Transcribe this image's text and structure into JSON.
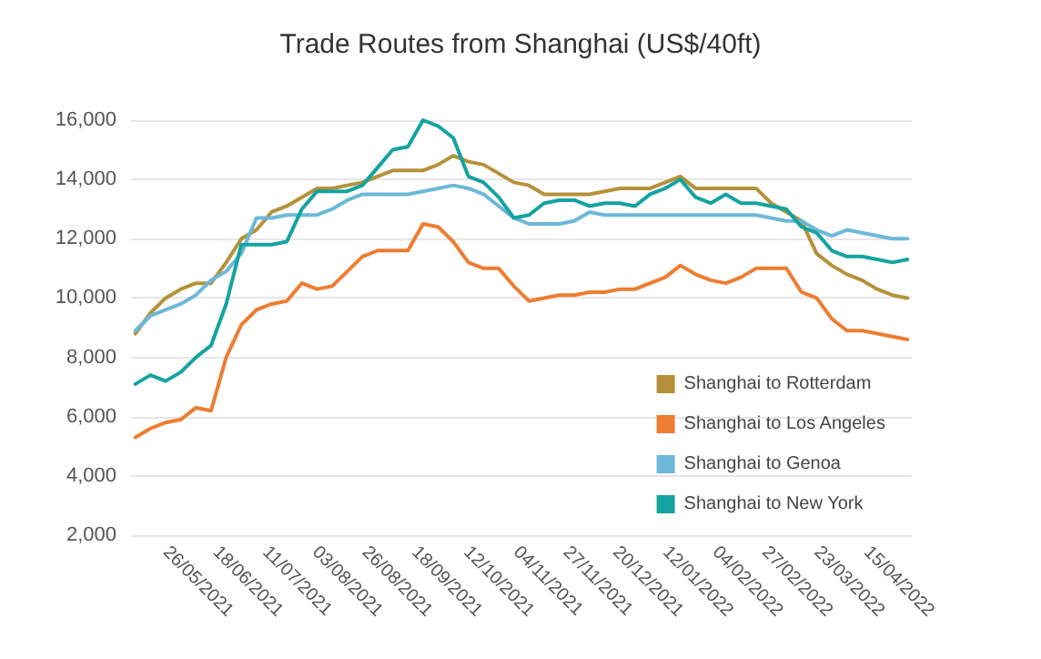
{
  "chart_data": {
    "type": "line",
    "title": "Trade Routes from Shanghai (US$/40ft)",
    "x": [
      "2021-05-12",
      "2021-05-19",
      "2021-05-26",
      "2021-06-02",
      "2021-06-09",
      "2021-06-16",
      "2021-06-23",
      "2021-06-30",
      "2021-07-07",
      "2021-07-14",
      "2021-07-21",
      "2021-07-28",
      "2021-08-04",
      "2021-08-11",
      "2021-08-18",
      "2021-08-25",
      "2021-09-01",
      "2021-09-08",
      "2021-09-15",
      "2021-09-22",
      "2021-09-29",
      "2021-10-06",
      "2021-10-13",
      "2021-10-20",
      "2021-10-27",
      "2021-11-03",
      "2021-11-10",
      "2021-11-17",
      "2021-11-24",
      "2021-12-01",
      "2021-12-08",
      "2021-12-15",
      "2021-12-22",
      "2021-12-29",
      "2022-01-05",
      "2022-01-12",
      "2022-01-19",
      "2022-01-26",
      "2022-02-02",
      "2022-02-09",
      "2022-02-16",
      "2022-02-23",
      "2022-03-02",
      "2022-03-09",
      "2022-03-16",
      "2022-03-23",
      "2022-03-30",
      "2022-04-06",
      "2022-04-13",
      "2022-04-20",
      "2022-04-27",
      "2022-05-04"
    ],
    "series": [
      {
        "name": "Shanghai to Rotterdam",
        "color": "#b5913a",
        "values": [
          8800,
          9500,
          10000,
          10300,
          10500,
          10500,
          11200,
          12000,
          12300,
          12900,
          13100,
          13400,
          13700,
          13700,
          13800,
          13900,
          14100,
          14300,
          14300,
          14300,
          14500,
          14800,
          14600,
          14500,
          14200,
          13900,
          13800,
          13500,
          13500,
          13500,
          13500,
          13600,
          13700,
          13700,
          13700,
          13900,
          14100,
          13700,
          13700,
          13700,
          13700,
          13700,
          13200,
          12900,
          12600,
          11500,
          11100,
          10800,
          10600,
          10300,
          10100,
          10000
        ]
      },
      {
        "name": "Shanghai to Los Angeles",
        "color": "#ed7d31",
        "values": [
          5300,
          5600,
          5800,
          5900,
          6300,
          6200,
          8000,
          9100,
          9600,
          9800,
          9900,
          10500,
          10300,
          10400,
          10900,
          11400,
          11600,
          11600,
          11600,
          12500,
          12400,
          11900,
          11200,
          11000,
          11000,
          10400,
          9900,
          10000,
          10100,
          10100,
          10200,
          10200,
          10300,
          10300,
          10500,
          10700,
          11100,
          10800,
          10600,
          10500,
          10700,
          11000,
          11000,
          11000,
          10200,
          10000,
          9300,
          8900,
          8900,
          8800,
          8700,
          8600
        ]
      },
      {
        "name": "Shanghai to Genoa",
        "color": "#6cb8d8",
        "values": [
          8900,
          9400,
          9600,
          9800,
          10100,
          10600,
          10900,
          11500,
          12700,
          12700,
          12800,
          12800,
          12800,
          13000,
          13300,
          13500,
          13500,
          13500,
          13500,
          13600,
          13700,
          13800,
          13700,
          13500,
          13100,
          12700,
          12500,
          12500,
          12500,
          12600,
          12900,
          12800,
          12800,
          12800,
          12800,
          12800,
          12800,
          12800,
          12800,
          12800,
          12800,
          12800,
          12700,
          12600,
          12600,
          12300,
          12100,
          12300,
          12200,
          12100,
          12000,
          12000
        ]
      },
      {
        "name": "Shanghai to New York",
        "color": "#14a3a0",
        "values": [
          7100,
          7400,
          7200,
          7500,
          8000,
          8400,
          9800,
          11800,
          11800,
          11800,
          11900,
          13000,
          13600,
          13600,
          13600,
          13800,
          14400,
          15000,
          15100,
          16000,
          15800,
          15400,
          14100,
          13900,
          13400,
          12700,
          12800,
          13200,
          13300,
          13300,
          13100,
          13200,
          13200,
          13100,
          13500,
          13700,
          14000,
          13400,
          13200,
          13500,
          13200,
          13200,
          13100,
          13000,
          12400,
          12200,
          11600,
          11400,
          11400,
          11300,
          11200,
          11300
        ]
      }
    ],
    "xlim": [
      "2021-05-10",
      "2022-05-06"
    ],
    "xticks": [
      {
        "value": "2021-05-26",
        "label": "26/05/2021"
      },
      {
        "value": "2021-06-18",
        "label": "18/06/2021"
      },
      {
        "value": "2021-07-11",
        "label": "11/07/2021"
      },
      {
        "value": "2021-08-03",
        "label": "03/08/2021"
      },
      {
        "value": "2021-08-26",
        "label": "26/08/2021"
      },
      {
        "value": "2021-09-18",
        "label": "18/09/2021"
      },
      {
        "value": "2021-10-12",
        "label": "12/10/2021"
      },
      {
        "value": "2021-11-04",
        "label": "04/11/2021"
      },
      {
        "value": "2021-11-27",
        "label": "27/11/2021"
      },
      {
        "value": "2021-12-20",
        "label": "20/12/2021"
      },
      {
        "value": "2022-01-12",
        "label": "12/01/2022"
      },
      {
        "value": "2022-02-04",
        "label": "04/02/2022"
      },
      {
        "value": "2022-02-27",
        "label": "27/02/2022"
      },
      {
        "value": "2022-03-23",
        "label": "23/03/2022"
      },
      {
        "value": "2022-04-15",
        "label": "15/04/2022"
      }
    ],
    "ylim": [
      2000,
      16000
    ],
    "yticks": [
      {
        "value": 2000,
        "label": "2,000"
      },
      {
        "value": 4000,
        "label": "4,000"
      },
      {
        "value": 6000,
        "label": "6,000"
      },
      {
        "value": 8000,
        "label": "8,000"
      },
      {
        "value": 10000,
        "label": "10,000"
      },
      {
        "value": 12000,
        "label": "12,000"
      },
      {
        "value": 14000,
        "label": "14,000"
      },
      {
        "value": 16000,
        "label": "16,000"
      }
    ],
    "grid": "y",
    "legend": "bottom right",
    "marker": "none",
    "line_style": "solid"
  }
}
